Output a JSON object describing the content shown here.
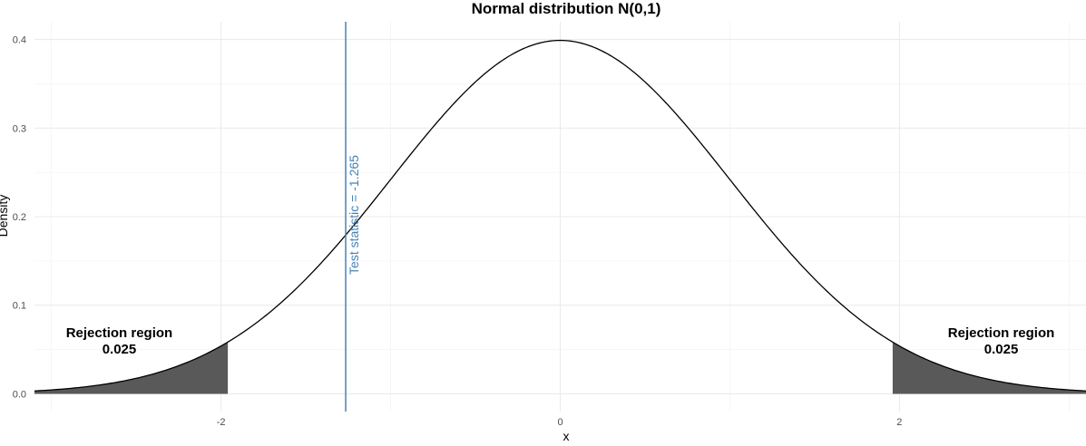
{
  "chart_data": {
    "type": "area",
    "title": "Normal distribution N(0,1)",
    "xlabel": "x",
    "ylabel": "Density",
    "xlim": [
      -3.1,
      3.1
    ],
    "ylim": [
      -0.02,
      0.42
    ],
    "x_ticks": [
      -2,
      0,
      2
    ],
    "x_tick_labels": [
      "-2",
      "0",
      "2"
    ],
    "y_ticks": [
      0.0,
      0.1,
      0.2,
      0.3,
      0.4
    ],
    "y_tick_labels": [
      "0.0",
      "0.1",
      "0.2",
      "0.3",
      "0.4"
    ],
    "grid": true,
    "curve": {
      "distribution": "normal",
      "mean": 0,
      "sd": 1,
      "x_range": [
        -3.1,
        3.1
      ],
      "color": "#000000"
    },
    "shaded_regions": [
      {
        "from": -3.1,
        "to": -1.96,
        "color": "#595959"
      },
      {
        "from": 1.96,
        "to": 3.1,
        "color": "#595959"
      }
    ],
    "vertical_line": {
      "x": -1.265,
      "label": "Test statistic = -1.265",
      "color": "#4682b4"
    },
    "annotations": [
      {
        "x": -2.6,
        "y": 0.06,
        "line1": "Rejection region",
        "line2": "0.025"
      },
      {
        "x": 2.6,
        "y": 0.06,
        "line1": "Rejection region",
        "line2": "0.025"
      }
    ]
  }
}
